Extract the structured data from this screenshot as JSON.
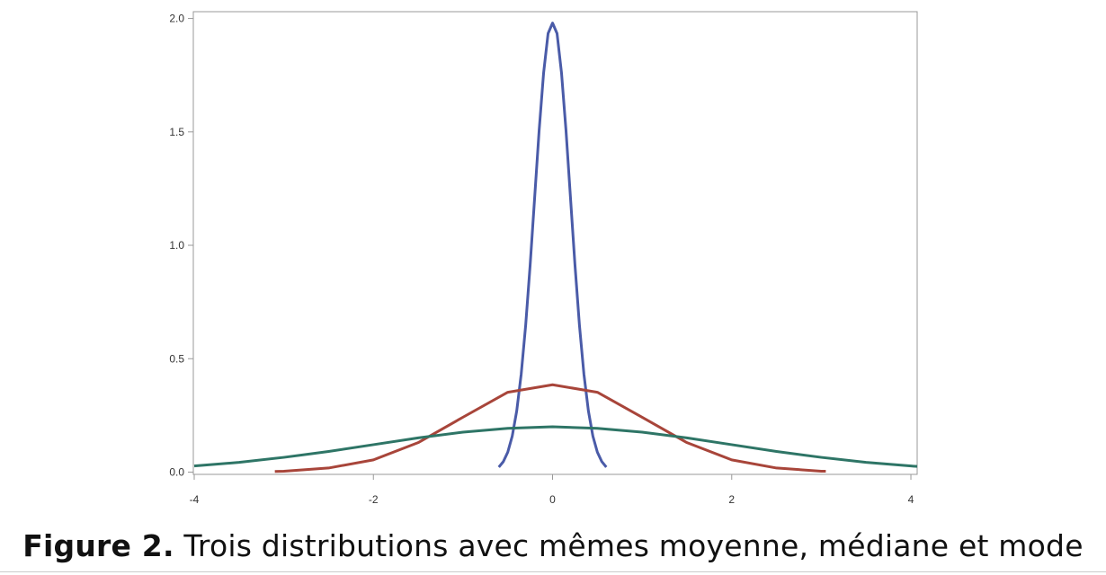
{
  "chart_data": {
    "type": "line",
    "xlim": [
      -4.01,
      4.07
    ],
    "ylim": [
      -0.01,
      2.03
    ],
    "xticks": [
      -4,
      -2,
      0,
      2,
      4
    ],
    "yticks": [
      {
        "value": 0,
        "label": "0.0"
      },
      {
        "value": 0.5,
        "label": "0.5"
      },
      {
        "value": 1,
        "label": "1.0"
      },
      {
        "value": 1.5,
        "label": "1.5"
      },
      {
        "value": 2,
        "label": "2.0"
      }
    ],
    "grid": false,
    "series": [
      {
        "color": "#4a5ba8",
        "x": [
          -0.6,
          -0.55,
          -0.5,
          -0.45,
          -0.4,
          -0.35,
          -0.3,
          -0.25,
          -0.2,
          -0.15,
          -0.1,
          -0.05,
          0,
          0.05,
          0.1,
          0.15,
          0.2,
          0.25,
          0.3,
          0.35,
          0.4,
          0.45,
          0.5,
          0.55,
          0.6
        ],
        "values": [
          0.022,
          0.046,
          0.088,
          0.159,
          0.27,
          0.432,
          0.648,
          0.914,
          1.21,
          1.506,
          1.76,
          1.934,
          1.98,
          1.934,
          1.76,
          1.506,
          1.21,
          0.914,
          0.648,
          0.432,
          0.27,
          0.159,
          0.088,
          0.046,
          0.022
        ]
      },
      {
        "color": "#a8453a",
        "x": [
          -3.1,
          -3,
          -2.5,
          -2,
          -1.5,
          -1,
          -0.5,
          0,
          0.5,
          1,
          1.5,
          2,
          2.5,
          3,
          3.05
        ],
        "values": [
          0.003,
          0.004,
          0.018,
          0.054,
          0.13,
          0.242,
          0.352,
          0.385,
          0.352,
          0.242,
          0.13,
          0.054,
          0.018,
          0.004,
          0.004
        ]
      },
      {
        "color": "#2e7566",
        "x": [
          -4,
          -3.5,
          -3,
          -2.5,
          -2,
          -1.5,
          -1,
          -0.5,
          0,
          0.5,
          1,
          1.5,
          2,
          2.5,
          3,
          3.5,
          4,
          4.07
        ],
        "values": [
          0.027,
          0.043,
          0.065,
          0.091,
          0.121,
          0.151,
          0.176,
          0.193,
          0.2,
          0.193,
          0.176,
          0.151,
          0.121,
          0.091,
          0.065,
          0.043,
          0.027,
          0.025
        ]
      }
    ]
  },
  "caption": {
    "label": "Figure 2.",
    "text": "Trois distributions avec mêmes moyenne, médiane et mode"
  }
}
